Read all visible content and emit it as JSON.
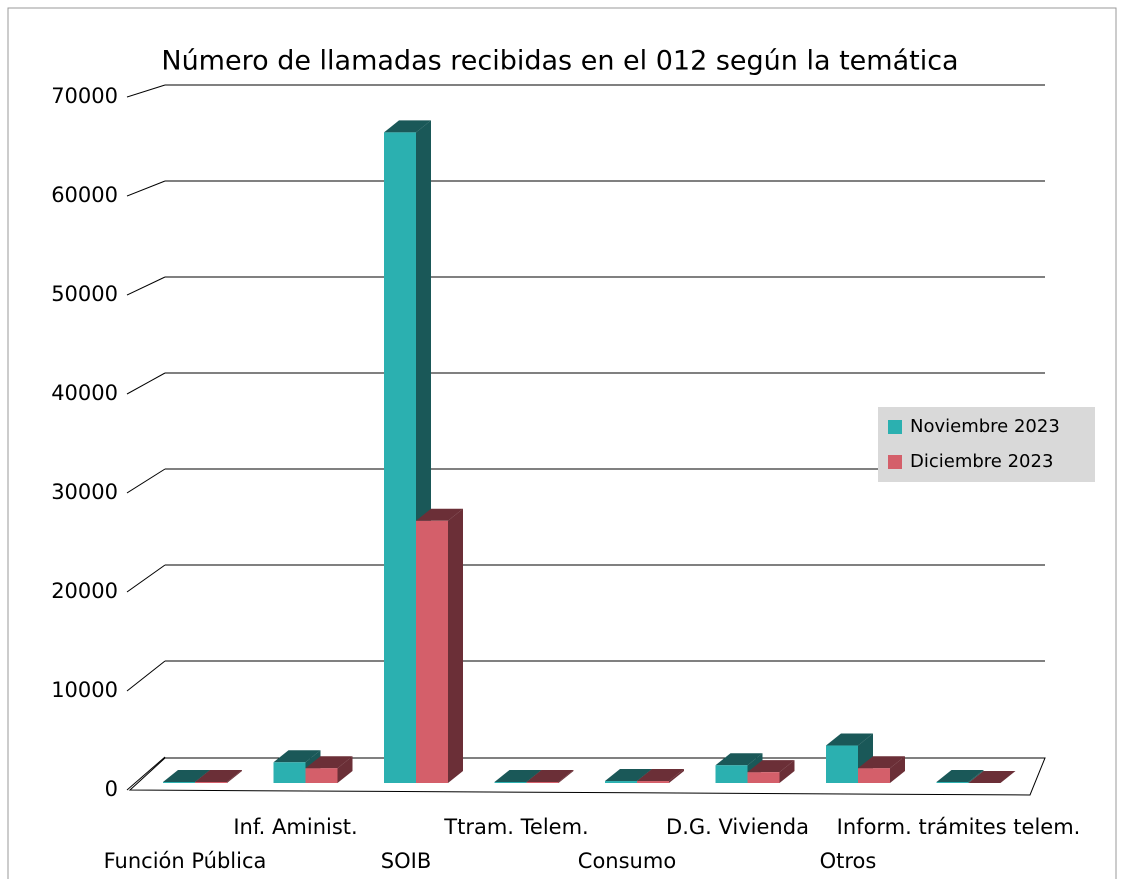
{
  "chart_data": {
    "type": "bar3d",
    "title": "Número de llamadas recibidas en el 012 según la temática",
    "categories": [
      "Función Pública",
      "Inf. Aminist.",
      "SOIB",
      "Ttram. Telem.",
      "Consumo",
      "D.G. Vivienda",
      "Otros",
      "Inform. trámites telem."
    ],
    "series": [
      {
        "name": "Noviembre 2023",
        "color": "#2bb0b0",
        "side": "#1a5858",
        "values": [
          100,
          2100,
          66000,
          100,
          200,
          1800,
          3800,
          100
        ]
      },
      {
        "name": "Diciembre 2023",
        "color": "#d45f6a",
        "side": "#6b2f37",
        "values": [
          100,
          1500,
          26600,
          100,
          200,
          1100,
          1500,
          0
        ]
      }
    ],
    "ylim": [
      0,
      70000
    ],
    "yticks": [
      0,
      10000,
      20000,
      30000,
      40000,
      50000,
      60000,
      70000
    ],
    "grid": true,
    "legend": "right"
  }
}
